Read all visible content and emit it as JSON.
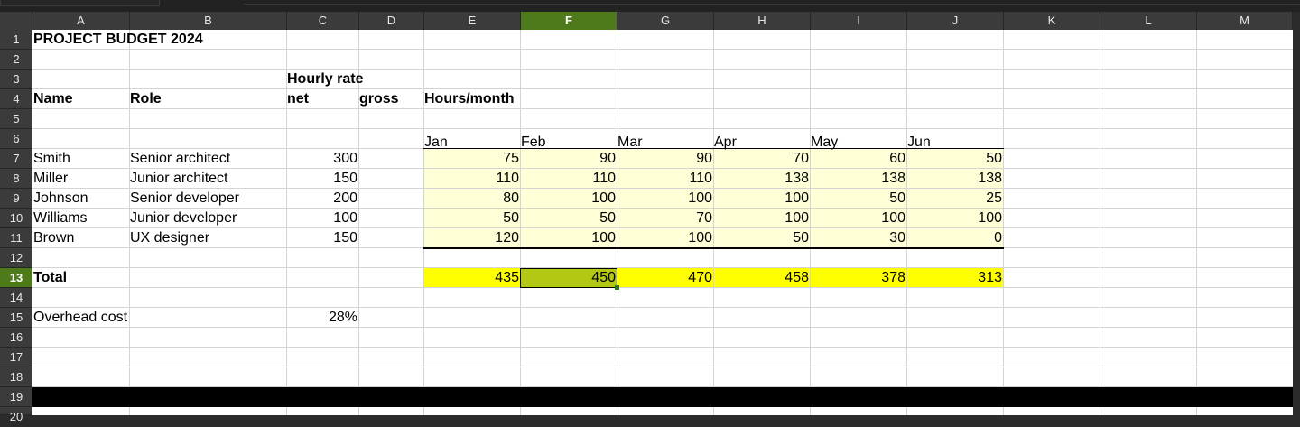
{
  "columns": [
    "A",
    "B",
    "C",
    "D",
    "E",
    "F",
    "G",
    "H",
    "I",
    "J",
    "K",
    "L",
    "M"
  ],
  "selected_column": "F",
  "rows": [
    "1",
    "2",
    "3",
    "4",
    "5",
    "6",
    "7",
    "8",
    "9",
    "10",
    "11",
    "12",
    "13",
    "14",
    "15",
    "16",
    "17",
    "18",
    "19",
    "20"
  ],
  "selected_row": "13",
  "sheet": {
    "title": "PROJECT BUDGET 2024",
    "hourly_rate_label": "Hourly rate",
    "headers": {
      "name": "Name",
      "role": "Role",
      "net": "net",
      "gross": "gross",
      "hours_month": "Hours/month"
    },
    "months": [
      "Jan",
      "Feb",
      "Mar",
      "Apr",
      "May",
      "Jun"
    ],
    "people": [
      {
        "name": "Smith",
        "role": "Senior architect",
        "rate": "300",
        "hours": [
          "75",
          "90",
          "90",
          "70",
          "60",
          "50"
        ]
      },
      {
        "name": "Miller",
        "role": "Junior architect",
        "rate": "150",
        "hours": [
          "110",
          "110",
          "110",
          "138",
          "138",
          "138"
        ]
      },
      {
        "name": "Johnson",
        "role": "Senior developer",
        "rate": "200",
        "hours": [
          "80",
          "100",
          "100",
          "100",
          "50",
          "25"
        ]
      },
      {
        "name": "Williams",
        "role": "Junior developer",
        "rate": "100",
        "hours": [
          "50",
          "50",
          "70",
          "100",
          "100",
          "100"
        ]
      },
      {
        "name": "Brown",
        "role": "UX designer",
        "rate": "150",
        "hours": [
          "120",
          "100",
          "100",
          "50",
          "30",
          "0"
        ]
      }
    ],
    "total_label": "Total",
    "totals": [
      "435",
      "450",
      "470",
      "458",
      "378",
      "313"
    ],
    "overhead_label": "Overhead cost",
    "overhead_value": "28%"
  },
  "colors": {
    "selection_header": "#4e7a1b",
    "data_fill": "#ffffd7",
    "total_fill": "#ffff00",
    "selected_cell": "#b3c813"
  }
}
